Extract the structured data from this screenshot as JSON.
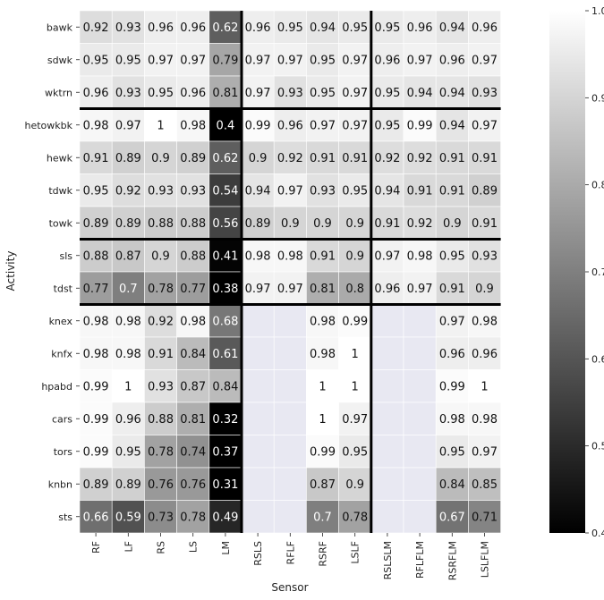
{
  "chart_data": {
    "type": "heatmap",
    "xlabel": "Sensor",
    "ylabel": "Activity",
    "columns": [
      "RF",
      "LF",
      "RS",
      "LS",
      "LM",
      "RSLS",
      "RFLF",
      "RSRF",
      "LSLF",
      "RSLSLM",
      "RFLFLM",
      "RSRFLM",
      "LSLFLM"
    ],
    "rows": [
      "bawk",
      "sdwk",
      "wktrn",
      "hetowkbk",
      "hewk",
      "tdwk",
      "towk",
      "sls",
      "tdst",
      "knex",
      "knfx",
      "hpabd",
      "cars",
      "tors",
      "knbn",
      "sts"
    ],
    "values": [
      [
        0.92,
        0.93,
        0.96,
        0.96,
        0.62,
        0.96,
        0.95,
        0.94,
        0.95,
        0.95,
        0.96,
        0.94,
        0.96
      ],
      [
        0.95,
        0.95,
        0.97,
        0.97,
        0.79,
        0.97,
        0.97,
        0.95,
        0.97,
        0.96,
        0.97,
        0.96,
        0.97
      ],
      [
        0.96,
        0.93,
        0.95,
        0.96,
        0.81,
        0.97,
        0.93,
        0.95,
        0.97,
        0.95,
        0.94,
        0.94,
        0.93
      ],
      [
        0.98,
        0.97,
        1,
        0.98,
        0.4,
        0.99,
        0.96,
        0.97,
        0.97,
        0.95,
        0.99,
        0.94,
        0.97
      ],
      [
        0.91,
        0.89,
        0.9,
        0.89,
        0.62,
        0.9,
        0.92,
        0.91,
        0.91,
        0.92,
        0.92,
        0.91,
        0.91
      ],
      [
        0.95,
        0.92,
        0.93,
        0.93,
        0.54,
        0.94,
        0.97,
        0.93,
        0.95,
        0.94,
        0.91,
        0.91,
        0.89
      ],
      [
        0.89,
        0.89,
        0.88,
        0.88,
        0.56,
        0.89,
        0.9,
        0.9,
        0.9,
        0.91,
        0.92,
        0.9,
        0.91
      ],
      [
        0.88,
        0.87,
        0.9,
        0.88,
        0.41,
        0.98,
        0.98,
        0.91,
        0.9,
        0.97,
        0.98,
        0.95,
        0.93
      ],
      [
        0.77,
        0.7,
        0.78,
        0.77,
        0.38,
        0.97,
        0.97,
        0.81,
        0.8,
        0.96,
        0.97,
        0.91,
        0.9
      ],
      [
        0.98,
        0.98,
        0.92,
        0.98,
        0.68,
        null,
        null,
        0.98,
        0.99,
        null,
        null,
        0.97,
        0.98
      ],
      [
        0.98,
        0.98,
        0.91,
        0.84,
        0.61,
        null,
        null,
        0.98,
        1,
        null,
        null,
        0.96,
        0.96
      ],
      [
        0.99,
        1,
        0.93,
        0.87,
        0.84,
        null,
        null,
        1,
        1,
        null,
        null,
        0.99,
        1
      ],
      [
        0.99,
        0.96,
        0.88,
        0.81,
        0.32,
        null,
        null,
        1,
        0.97,
        null,
        null,
        0.98,
        0.98
      ],
      [
        0.99,
        0.95,
        0.78,
        0.74,
        0.37,
        null,
        null,
        0.99,
        0.95,
        null,
        null,
        0.95,
        0.97
      ],
      [
        0.89,
        0.89,
        0.76,
        0.76,
        0.31,
        null,
        null,
        0.87,
        0.9,
        null,
        null,
        0.84,
        0.85
      ],
      [
        0.66,
        0.59,
        0.73,
        0.78,
        0.49,
        null,
        null,
        0.7,
        0.78,
        null,
        null,
        0.67,
        0.71
      ]
    ],
    "colorbar": {
      "range": [
        0.4,
        1.0
      ],
      "ticks": [
        "0.4",
        "0.5",
        "0.6",
        "0.7",
        "0.8",
        "0.9",
        "1.0"
      ],
      "colormap": "gray",
      "missing_color": "#e8e8f2"
    },
    "row_separators_after": [
      "wktrn",
      "towk",
      "tdst"
    ],
    "column_separators_after": [
      "LM",
      "LSLF"
    ],
    "grid": false
  }
}
